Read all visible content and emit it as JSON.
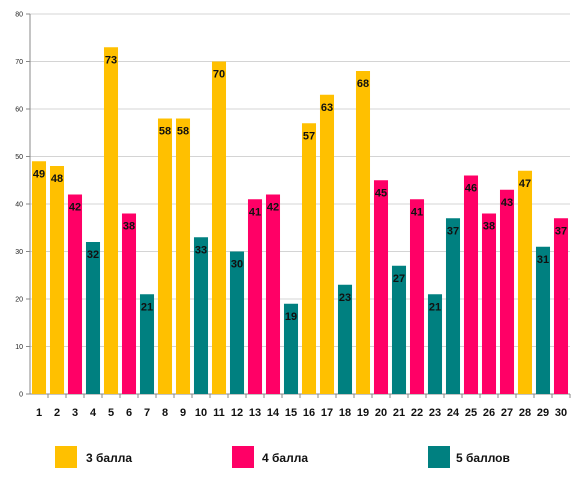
{
  "chart_data": {
    "type": "bar",
    "title": "",
    "xlabel": "",
    "ylabel": "",
    "ylim": [
      0,
      80
    ],
    "yticks": [
      0,
      10,
      20,
      30,
      40,
      50,
      60,
      70,
      80
    ],
    "grid": true,
    "legend_position": "bottom",
    "categories": [
      "1",
      "2",
      "3",
      "4",
      "5",
      "6",
      "7",
      "8",
      "9",
      "10",
      "11",
      "12",
      "13",
      "14",
      "15",
      "16",
      "17",
      "18",
      "19",
      "20",
      "21",
      "22",
      "23",
      "24",
      "25",
      "26",
      "27",
      "28",
      "29",
      "30"
    ],
    "values": [
      49,
      48,
      42,
      32,
      73,
      38,
      21,
      58,
      58,
      33,
      70,
      30,
      41,
      42,
      19,
      57,
      63,
      23,
      68,
      45,
      27,
      41,
      21,
      37,
      46,
      38,
      43,
      47,
      31,
      37
    ],
    "groups": [
      "3 балла",
      "3 балла",
      "4 балла",
      "5 баллов",
      "3 балла",
      "4 балла",
      "5 баллов",
      "3 балла",
      "3 балла",
      "5 баллов",
      "3 балла",
      "5 баллов",
      "4 балла",
      "4 балла",
      "5 баллов",
      "3 балла",
      "3 балла",
      "5 баллов",
      "3 балла",
      "4 балла",
      "5 баллов",
      "4 балла",
      "5 баллов",
      "5 баллов",
      "4 балла",
      "4 балла",
      "4 балла",
      "3 балла",
      "5 баллов",
      "4 балла"
    ],
    "legend": [
      {
        "name": "3 балла",
        "color": "#FFC000"
      },
      {
        "name": "4 балла",
        "color": "#FF0066"
      },
      {
        "name": "5 баллов",
        "color": "#008080"
      }
    ]
  }
}
